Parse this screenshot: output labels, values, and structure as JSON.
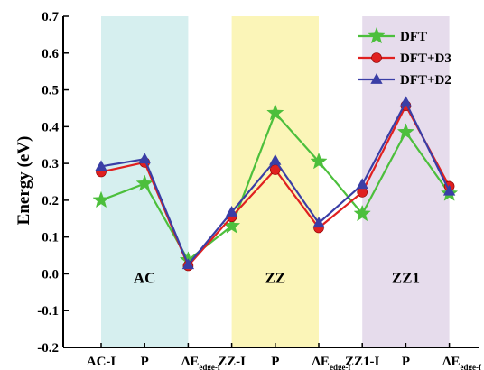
{
  "chart_data": {
    "type": "line",
    "xlabel": "",
    "ylabel": "Energy (eV)",
    "ylim": [
      -0.2,
      0.7
    ],
    "yticks": [
      "-0.2",
      "-0.1",
      "0.0",
      "0.1",
      "0.2",
      "0.3",
      "0.4",
      "0.5",
      "0.6",
      "0.7"
    ],
    "categories": [
      {
        "main": "AC-I",
        "sub": ""
      },
      {
        "main": "P",
        "sub": ""
      },
      {
        "main": "ΔE",
        "sub": "edge-f"
      },
      {
        "main": "ZZ-I",
        "sub": ""
      },
      {
        "main": "P",
        "sub": ""
      },
      {
        "main": "ΔE",
        "sub": "edge-f"
      },
      {
        "main": "ZZ1-I",
        "sub": ""
      },
      {
        "main": "P",
        "sub": ""
      },
      {
        "main": "ΔE",
        "sub": "edge-f"
      }
    ],
    "regions": [
      {
        "label": "AC",
        "from": 0,
        "to": 2,
        "color": "#d6efef"
      },
      {
        "label": "ZZ",
        "from": 3,
        "to": 5,
        "color": "#fbf5b8"
      },
      {
        "label": "ZZ1",
        "from": 6,
        "to": 8,
        "color": "#e6dcec"
      }
    ],
    "legend_position": "top-right",
    "series": [
      {
        "name": "DFT",
        "color": "#4cbf3c",
        "marker": "star",
        "segments": [
          [
            0.2,
            0.245,
            0.037
          ],
          [
            0.13,
            0.437,
            0.305
          ],
          [
            0.163,
            0.385,
            0.218
          ]
        ]
      },
      {
        "name": "DFT+D3",
        "color": "#e02020",
        "marker": "circle",
        "segments": [
          [
            0.277,
            0.303,
            0.022
          ],
          [
            0.155,
            0.283,
            0.125
          ],
          [
            0.222,
            0.457,
            0.238
          ]
        ]
      },
      {
        "name": "DFT+D2",
        "color": "#3a3ea6",
        "marker": "triangle",
        "segments": [
          [
            0.292,
            0.312,
            0.025
          ],
          [
            0.168,
            0.308,
            0.138
          ],
          [
            0.243,
            0.466,
            0.225
          ]
        ]
      }
    ]
  }
}
